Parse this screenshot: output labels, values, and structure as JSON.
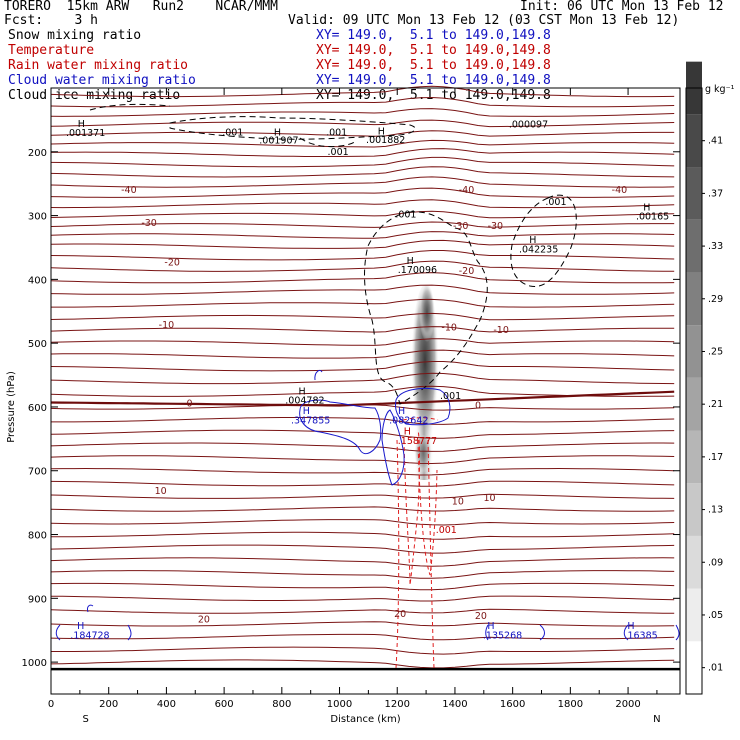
{
  "header": {
    "model": "TORERO  15km ARW   Run2    NCAR/MMM",
    "init": "Init: 06 UTC Mon 13 Feb 12",
    "fcst": "Fcst:    3 h",
    "valid": "Valid: 09 UTC Mon 13 Feb 12 (03 CST Mon 13 Feb 12)"
  },
  "fields": [
    {
      "name": "Snow mixing ratio",
      "xy": "XY= 149.0,  5.1 to 149.0,149.8",
      "color": "#000000"
    },
    {
      "name": "Temperature",
      "xy": "XY= 149.0,  5.1 to 149.0,149.8",
      "color": "#c00000"
    },
    {
      "name": "Rain water mixing ratio",
      "xy": "XY= 149.0,  5.1 to 149.0,149.8",
      "color": "#c00000"
    },
    {
      "name": "Cloud water mixing ratio",
      "xy": "XY= 149.0,  5.1 to 149.0,149.8",
      "color": "#1010c0"
    },
    {
      "name": "Cloud ice mixing ratio",
      "xy": "XY= 149.0,  5.1 to 149.0,149.8",
      "color": "#000000"
    }
  ],
  "chart_data": {
    "type": "cross-section",
    "xlabel": "Distance (km)",
    "ylabel": "Pressure (hPa)",
    "xlim": [
      0,
      2180
    ],
    "ylim": [
      1050,
      100
    ],
    "x_ticks": [
      0,
      200,
      400,
      600,
      800,
      1000,
      1200,
      1400,
      1600,
      1800,
      2000
    ],
    "y_ticks": [
      200,
      300,
      400,
      500,
      600,
      700,
      800,
      900,
      1000
    ],
    "end_labels": {
      "left": "S",
      "right": "N"
    },
    "colorbar": {
      "unit": "g kg⁻¹",
      "ticks": [
        ".01",
        ".05",
        ".09",
        ".13",
        ".17",
        ".21",
        ".25",
        ".29",
        ".33",
        ".37",
        ".41"
      ]
    },
    "temperature_labels": [
      {
        "text": "-40",
        "x": 270,
        "p": 258
      },
      {
        "text": "-40",
        "x": 1440,
        "p": 258
      },
      {
        "text": "-40",
        "x": 1970,
        "p": 258
      },
      {
        "text": "-30",
        "x": 340,
        "p": 310
      },
      {
        "text": "-30",
        "x": 1420,
        "p": 315
      },
      {
        "text": "-30",
        "x": 1540,
        "p": 315
      },
      {
        "text": "-20",
        "x": 420,
        "p": 372
      },
      {
        "text": "-20",
        "x": 1440,
        "p": 385
      },
      {
        "text": "-10",
        "x": 400,
        "p": 470
      },
      {
        "text": "-10",
        "x": 1380,
        "p": 474
      },
      {
        "text": "-10",
        "x": 1560,
        "p": 478
      },
      {
        "text": "0",
        "x": 480,
        "p": 593
      },
      {
        "text": "0",
        "x": 1480,
        "p": 596
      },
      {
        "text": "10",
        "x": 380,
        "p": 730
      },
      {
        "text": "10",
        "x": 1410,
        "p": 747
      },
      {
        "text": "10",
        "x": 1520,
        "p": 741
      },
      {
        "text": "20",
        "x": 530,
        "p": 932
      },
      {
        "text": "20",
        "x": 1210,
        "p": 923
      },
      {
        "text": "20",
        "x": 1490,
        "p": 926
      }
    ],
    "extrema_labels": [
      {
        "text": "H",
        "x": 105,
        "p": 155,
        "color": "#000000"
      },
      {
        "text": ".001371",
        "x": 120,
        "p": 169,
        "color": "#000000"
      },
      {
        "text": "H",
        "x": 785,
        "p": 168,
        "color": "#000000"
      },
      {
        "text": ".001907",
        "x": 790,
        "p": 181,
        "color": "#000000"
      },
      {
        "text": ".001",
        "x": 630,
        "p": 168,
        "color": "#000000"
      },
      {
        "text": ".001",
        "x": 990,
        "p": 168,
        "color": "#000000"
      },
      {
        "text": "H",
        "x": 1145,
        "p": 167,
        "color": "#000000"
      },
      {
        "text": ".001882",
        "x": 1160,
        "p": 180,
        "color": "#000000"
      },
      {
        "text": ".001",
        "x": 995,
        "p": 199,
        "color": "#000000"
      },
      {
        "text": ".000097",
        "x": 1655,
        "p": 156,
        "color": "#000000"
      },
      {
        "text": ".001",
        "x": 1230,
        "p": 297,
        "color": "#000000"
      },
      {
        "text": ".001",
        "x": 1750,
        "p": 277,
        "color": "#000000"
      },
      {
        "text": "H",
        "x": 2065,
        "p": 286,
        "color": "#000000"
      },
      {
        "text": ".00165",
        "x": 2085,
        "p": 300,
        "color": "#000000"
      },
      {
        "text": "H",
        "x": 1670,
        "p": 337,
        "color": "#000000"
      },
      {
        "text": ".042235",
        "x": 1690,
        "p": 352,
        "color": "#000000"
      },
      {
        "text": "H",
        "x": 1245,
        "p": 370,
        "color": "#000000"
      },
      {
        "text": ".170096",
        "x": 1270,
        "p": 384,
        "color": "#000000"
      },
      {
        "text": "H",
        "x": 870,
        "p": 574,
        "color": "#000000"
      },
      {
        "text": ".004782",
        "x": 880,
        "p": 588,
        "color": "#000000"
      },
      {
        "text": ".001",
        "x": 1385,
        "p": 581,
        "color": "#000000"
      },
      {
        "text": "H",
        "x": 885,
        "p": 605,
        "color": "#1010c0"
      },
      {
        "text": ".347855",
        "x": 900,
        "p": 620,
        "color": "#1010c0"
      },
      {
        "text": "H",
        "x": 1215,
        "p": 605,
        "color": "#1010c0"
      },
      {
        "text": ".082642",
        "x": 1240,
        "p": 620,
        "color": "#1010c0"
      },
      {
        "text": "H",
        "x": 1235,
        "p": 637,
        "color": "#c00000"
      },
      {
        "text": ".158777",
        "x": 1270,
        "p": 652,
        "color": "#c00000"
      },
      {
        "text": ".001",
        "x": 1370,
        "p": 791,
        "color": "#c00000"
      },
      {
        "text": "H",
        "x": 103,
        "p": 942,
        "color": "#1010c0"
      },
      {
        "text": ".184728",
        "x": 135,
        "p": 957,
        "color": "#1010c0"
      },
      {
        "text": "H",
        "x": 1525,
        "p": 942,
        "color": "#1010c0"
      },
      {
        "text": ".135268",
        "x": 1565,
        "p": 957,
        "color": "#1010c0"
      },
      {
        "text": "H",
        "x": 2010,
        "p": 942,
        "color": "#1010c0"
      },
      {
        "text": ".16385",
        "x": 2045,
        "p": 957,
        "color": "#1010c0"
      }
    ]
  }
}
